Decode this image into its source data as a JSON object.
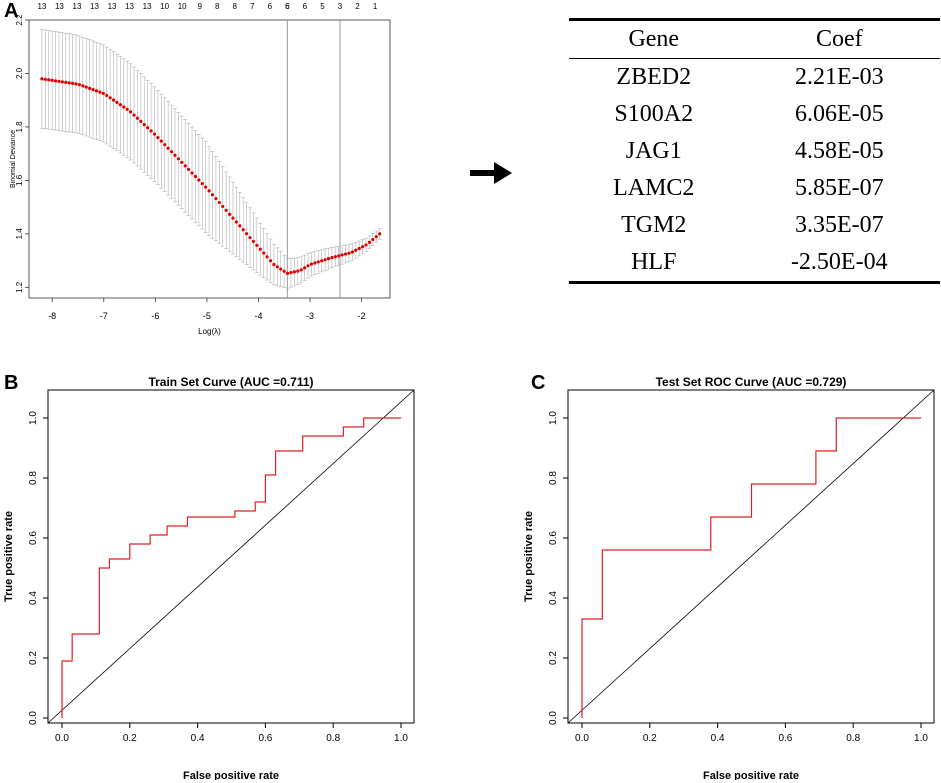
{
  "panels": {
    "a": "A",
    "b": "B",
    "c": "C"
  },
  "table": {
    "headers": [
      "Gene",
      "Coef"
    ],
    "rows": [
      [
        "ZBED2",
        "2.21E-03"
      ],
      [
        "S100A2",
        "6.06E-05"
      ],
      [
        "JAG1",
        "4.58E-05"
      ],
      [
        "LAMC2",
        "5.85E-07"
      ],
      [
        "TGM2",
        "3.35E-07"
      ],
      [
        "HLF",
        "-2.50E-04"
      ]
    ]
  },
  "chart_data": [
    {
      "id": "lasso-cv",
      "type": "scatter",
      "title": "",
      "xlabel": "Log(λ)",
      "ylabel": "Binomial Deviance",
      "xlim": [
        -8.45,
        -1.45
      ],
      "ylim": [
        1.16,
        2.2
      ],
      "xticks": [
        -8,
        -7,
        -6,
        -5,
        -4,
        -3,
        -2
      ],
      "yticks": [
        1.2,
        1.4,
        1.6,
        1.8,
        2.0,
        2.2
      ],
      "ytick_labels": [
        "1.2",
        "1.4",
        "1.6",
        "1.8",
        "2.0",
        "2.2"
      ],
      "top_axis_labels": [
        "13",
        "13",
        "13",
        "13",
        "13",
        "13",
        "13",
        "10",
        "10",
        "9",
        "8",
        "8",
        "7",
        "6",
        "6",
        "6",
        "6",
        "5",
        "3",
        "2",
        "1"
      ],
      "top_axis_positions": [
        -8.2,
        -7.86,
        -7.52,
        -7.18,
        -6.84,
        -6.5,
        -6.16,
        -5.82,
        -5.48,
        -5.14,
        -4.8,
        -4.46,
        -4.12,
        -3.78,
        -3.44,
        -3.44,
        -3.1,
        -2.76,
        -2.42,
        -2.08,
        -1.74
      ],
      "vlines": [
        -3.44,
        -2.42
      ],
      "curve_x": [
        -8.2,
        -7.5,
        -7.0,
        -6.5,
        -6.0,
        -5.5,
        -5.0,
        -4.5,
        -4.0,
        -3.7,
        -3.44,
        -3.2,
        -3.0,
        -2.6,
        -2.2,
        -1.9,
        -1.65
      ],
      "curve_y": [
        1.98,
        1.96,
        1.925,
        1.86,
        1.77,
        1.67,
        1.57,
        1.46,
        1.35,
        1.285,
        1.252,
        1.262,
        1.285,
        1.31,
        1.33,
        1.36,
        1.4
      ],
      "error_band_x": [
        -8.2,
        -6.5,
        -5.0,
        -4.0,
        -3.44,
        -3.0,
        -2.4,
        -1.65
      ],
      "error_halfwidth": [
        0.185,
        0.18,
        0.17,
        0.1,
        0.055,
        0.045,
        0.035,
        0.02
      ],
      "point_color": "#e00000",
      "errorbar_color": "#b0b0b0"
    },
    {
      "id": "roc-train",
      "type": "line",
      "title": "Train Set Curve (AUC =0.711)",
      "xlabel": "False positive rate",
      "ylabel": "True positive rate",
      "xlim": [
        0,
        1
      ],
      "ylim": [
        0,
        1
      ],
      "xticks": [
        0,
        0.2,
        0.4,
        0.6,
        0.8,
        1
      ],
      "xtick_labels": [
        "0.0",
        "0.2",
        "0.4",
        "0.6",
        "0.8",
        "1.0"
      ],
      "yticks": [
        0,
        0.2,
        0.4,
        0.6,
        0.8,
        1
      ],
      "ytick_labels": [
        "0.0",
        "0.2",
        "0.4",
        "0.6",
        "0.8",
        "1.0"
      ],
      "x": [
        0,
        0,
        0.03,
        0.03,
        0.11,
        0.11,
        0.14,
        0.14,
        0.2,
        0.2,
        0.26,
        0.26,
        0.31,
        0.31,
        0.37,
        0.37,
        0.51,
        0.51,
        0.57,
        0.57,
        0.6,
        0.6,
        0.63,
        0.63,
        0.71,
        0.71,
        0.83,
        0.83,
        0.89,
        0.89,
        1
      ],
      "y": [
        0,
        0.19,
        0.19,
        0.28,
        0.28,
        0.5,
        0.5,
        0.53,
        0.53,
        0.58,
        0.58,
        0.61,
        0.61,
        0.64,
        0.64,
        0.67,
        0.67,
        0.69,
        0.69,
        0.72,
        0.72,
        0.81,
        0.81,
        0.89,
        0.89,
        0.94,
        0.94,
        0.97,
        0.97,
        1,
        1
      ],
      "line_color": "#e02020",
      "diagonal": true
    },
    {
      "id": "roc-test",
      "type": "line",
      "title": "Test Set ROC Curve (AUC =0.729)",
      "xlabel": "False positive rate",
      "ylabel": "True positive rate",
      "xlim": [
        0,
        1
      ],
      "ylim": [
        0,
        1
      ],
      "xticks": [
        0,
        0.2,
        0.4,
        0.6,
        0.8,
        1
      ],
      "xtick_labels": [
        "0.0",
        "0.2",
        "0.4",
        "0.6",
        "0.8",
        "1.0"
      ],
      "yticks": [
        0,
        0.2,
        0.4,
        0.6,
        0.8,
        1
      ],
      "ytick_labels": [
        "0.0",
        "0.2",
        "0.4",
        "0.6",
        "0.8",
        "1.0"
      ],
      "x": [
        0,
        0,
        0.06,
        0.06,
        0.38,
        0.38,
        0.5,
        0.5,
        0.69,
        0.69,
        0.75,
        0.75,
        1
      ],
      "y": [
        0,
        0.33,
        0.33,
        0.56,
        0.56,
        0.67,
        0.67,
        0.78,
        0.78,
        0.89,
        0.89,
        1,
        1
      ],
      "line_color": "#e02020",
      "diagonal": true
    }
  ]
}
